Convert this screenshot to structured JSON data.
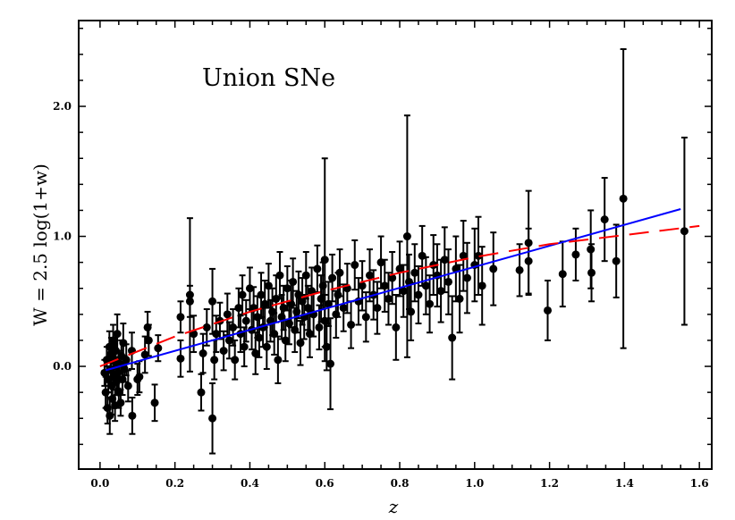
{
  "chart_data": {
    "type": "scatter",
    "title": "Union SNe",
    "xlabel": "z",
    "ylabel": "W = 2.5 log(1+w)",
    "xlim": [
      -0.057,
      1.633
    ],
    "ylim": [
      -0.79,
      2.66
    ],
    "grid": false,
    "x_ticks": [
      "0.0",
      "0.2",
      "0.4",
      "0.6",
      "0.8",
      "1.0",
      "1.2",
      "1.4",
      "1.6"
    ],
    "y_ticks": [
      "0.0",
      "1.0",
      "2.0"
    ],
    "colors": {
      "points": "#000000",
      "linear_fit": "#0000ff",
      "model_curve": "#ff0000"
    },
    "series": [
      {
        "kind": "points_with_errorbars",
        "points": [
          [
            0.012,
            -0.05,
            0.1
          ],
          [
            0.015,
            -0.2,
            0.12
          ],
          [
            0.018,
            0.05,
            0.1
          ],
          [
            0.02,
            -0.32,
            0.12
          ],
          [
            0.022,
            -0.1,
            0.1
          ],
          [
            0.025,
            0.15,
            0.12
          ],
          [
            0.026,
            -0.38,
            0.14
          ],
          [
            0.028,
            -0.02,
            0.1
          ],
          [
            0.03,
            0.1,
            0.12
          ],
          [
            0.031,
            -0.15,
            0.1
          ],
          [
            0.033,
            -0.25,
            0.12
          ],
          [
            0.035,
            0.2,
            0.12
          ],
          [
            0.036,
            -0.08,
            0.1
          ],
          [
            0.038,
            0.05,
            0.12
          ],
          [
            0.04,
            -0.3,
            0.12
          ],
          [
            0.042,
            0.12,
            0.14
          ],
          [
            0.044,
            -0.12,
            0.1
          ],
          [
            0.046,
            0.25,
            0.15
          ],
          [
            0.048,
            -0.05,
            0.12
          ],
          [
            0.05,
            -0.2,
            0.12
          ],
          [
            0.052,
            0.02,
            0.1
          ],
          [
            0.055,
            -0.28,
            0.1
          ],
          [
            0.057,
            0.08,
            0.12
          ],
          [
            0.06,
            -0.1,
            0.12
          ],
          [
            0.062,
            0.18,
            0.15
          ],
          [
            0.065,
            -0.02,
            0.1
          ],
          [
            0.07,
            0.05,
            0.12
          ],
          [
            0.075,
            -0.15,
            0.12
          ],
          [
            0.085,
            0.12,
            0.14
          ],
          [
            0.086,
            -0.38,
            0.14
          ],
          [
            0.1,
            -0.1,
            0.12
          ],
          [
            0.105,
            -0.08,
            0.12
          ],
          [
            0.12,
            0.09,
            0.14
          ],
          [
            0.127,
            0.3,
            0.12
          ],
          [
            0.13,
            0.2,
            0.12
          ],
          [
            0.146,
            -0.28,
            0.14
          ],
          [
            0.155,
            0.14,
            0.1
          ],
          [
            0.215,
            0.38,
            0.12
          ],
          [
            0.215,
            0.06,
            0.14
          ],
          [
            0.24,
            0.55,
            0.59
          ],
          [
            0.24,
            0.5,
            0.12
          ],
          [
            0.25,
            0.25,
            0.14
          ],
          [
            0.27,
            -0.2,
            0.14
          ],
          [
            0.275,
            0.1,
            0.15
          ],
          [
            0.285,
            0.3,
            0.14
          ],
          [
            0.3,
            -0.4,
            0.27
          ],
          [
            0.3,
            0.5,
            0.25
          ],
          [
            0.305,
            0.05,
            0.15
          ],
          [
            0.31,
            0.25,
            0.14
          ],
          [
            0.32,
            0.35,
            0.14
          ],
          [
            0.33,
            0.12,
            0.15
          ],
          [
            0.34,
            0.4,
            0.16
          ],
          [
            0.345,
            0.2,
            0.14
          ],
          [
            0.355,
            0.3,
            0.14
          ],
          [
            0.36,
            0.05,
            0.15
          ],
          [
            0.37,
            0.45,
            0.15
          ],
          [
            0.375,
            0.25,
            0.14
          ],
          [
            0.38,
            0.55,
            0.15
          ],
          [
            0.385,
            0.15,
            0.15
          ],
          [
            0.39,
            0.35,
            0.16
          ],
          [
            0.4,
            0.6,
            0.16
          ],
          [
            0.405,
            0.28,
            0.15
          ],
          [
            0.41,
            0.45,
            0.16
          ],
          [
            0.415,
            0.1,
            0.16
          ],
          [
            0.42,
            0.38,
            0.16
          ],
          [
            0.425,
            0.22,
            0.15
          ],
          [
            0.43,
            0.55,
            0.17
          ],
          [
            0.435,
            0.3,
            0.15
          ],
          [
            0.44,
            0.48,
            0.18
          ],
          [
            0.445,
            0.15,
            0.17
          ],
          [
            0.45,
            0.62,
            0.17
          ],
          [
            0.455,
            0.35,
            0.16
          ],
          [
            0.46,
            0.42,
            0.18
          ],
          [
            0.465,
            0.25,
            0.16
          ],
          [
            0.47,
            0.52,
            0.18
          ],
          [
            0.475,
            0.05,
            0.18
          ],
          [
            0.48,
            0.7,
            0.18
          ],
          [
            0.485,
            0.38,
            0.17
          ],
          [
            0.49,
            0.45,
            0.17
          ],
          [
            0.495,
            0.2,
            0.16
          ],
          [
            0.5,
            0.6,
            0.17
          ],
          [
            0.505,
            0.33,
            0.16
          ],
          [
            0.51,
            0.48,
            0.18
          ],
          [
            0.515,
            0.65,
            0.18
          ],
          [
            0.52,
            0.28,
            0.17
          ],
          [
            0.525,
            0.42,
            0.16
          ],
          [
            0.53,
            0.55,
            0.18
          ],
          [
            0.535,
            0.18,
            0.17
          ],
          [
            0.54,
            0.5,
            0.18
          ],
          [
            0.545,
            0.38,
            0.17
          ],
          [
            0.55,
            0.7,
            0.18
          ],
          [
            0.555,
            0.45,
            0.17
          ],
          [
            0.56,
            0.25,
            0.18
          ],
          [
            0.565,
            0.58,
            0.18
          ],
          [
            0.57,
            0.4,
            0.17
          ],
          [
            0.58,
            0.75,
            0.18
          ],
          [
            0.585,
            0.3,
            0.17
          ],
          [
            0.59,
            0.52,
            0.18
          ],
          [
            0.595,
            0.62,
            0.18
          ],
          [
            0.6,
            0.82,
            0.78
          ],
          [
            0.6,
            0.35,
            0.2
          ],
          [
            0.605,
            0.15,
            0.18
          ],
          [
            0.61,
            0.48,
            0.17
          ],
          [
            0.615,
            0.02,
            0.35
          ],
          [
            0.62,
            0.68,
            0.18
          ],
          [
            0.63,
            0.4,
            0.18
          ],
          [
            0.635,
            0.55,
            0.17
          ],
          [
            0.64,
            0.72,
            0.18
          ],
          [
            0.65,
            0.45,
            0.18
          ],
          [
            0.66,
            0.6,
            0.19
          ],
          [
            0.67,
            0.32,
            0.18
          ],
          [
            0.68,
            0.78,
            0.19
          ],
          [
            0.69,
            0.5,
            0.18
          ],
          [
            0.7,
            0.62,
            0.19
          ],
          [
            0.71,
            0.38,
            0.19
          ],
          [
            0.72,
            0.7,
            0.2
          ],
          [
            0.73,
            0.55,
            0.19
          ],
          [
            0.74,
            0.45,
            0.2
          ],
          [
            0.75,
            0.8,
            0.2
          ],
          [
            0.76,
            0.62,
            0.2
          ],
          [
            0.77,
            0.52,
            0.2
          ],
          [
            0.78,
            0.68,
            0.2
          ],
          [
            0.79,
            0.3,
            0.25
          ],
          [
            0.8,
            0.75,
            0.21
          ],
          [
            0.81,
            0.58,
            0.2
          ],
          [
            0.82,
            1.0,
            0.93
          ],
          [
            0.825,
            0.65,
            0.21
          ],
          [
            0.83,
            0.42,
            0.22
          ],
          [
            0.84,
            0.72,
            0.22
          ],
          [
            0.85,
            0.55,
            0.22
          ],
          [
            0.86,
            0.85,
            0.23
          ],
          [
            0.87,
            0.62,
            0.22
          ],
          [
            0.88,
            0.48,
            0.22
          ],
          [
            0.89,
            0.78,
            0.23
          ],
          [
            0.9,
            0.7,
            0.24
          ],
          [
            0.91,
            0.58,
            0.24
          ],
          [
            0.92,
            0.82,
            0.25
          ],
          [
            0.93,
            0.65,
            0.25
          ],
          [
            0.94,
            0.22,
            0.32
          ],
          [
            0.95,
            0.75,
            0.25
          ],
          [
            0.96,
            0.52,
            0.26
          ],
          [
            0.97,
            0.85,
            0.27
          ],
          [
            0.98,
            0.68,
            0.27
          ],
          [
            1.0,
            0.78,
            0.28
          ],
          [
            1.01,
            0.85,
            0.3
          ],
          [
            1.02,
            0.62,
            0.3
          ],
          [
            1.05,
            0.75,
            0.28
          ],
          [
            1.12,
            0.74,
            0.2
          ],
          [
            1.144,
            0.95,
            0.4
          ],
          [
            1.144,
            0.81,
            0.25
          ],
          [
            1.195,
            0.43,
            0.23
          ],
          [
            1.235,
            0.71,
            0.25
          ],
          [
            1.27,
            0.86,
            0.2
          ],
          [
            1.31,
            0.9,
            0.3
          ],
          [
            1.312,
            0.72,
            0.22
          ],
          [
            1.347,
            1.13,
            0.32
          ],
          [
            1.378,
            0.81,
            0.28
          ],
          [
            1.397,
            1.29,
            1.15
          ],
          [
            1.56,
            1.04,
            0.72
          ]
        ]
      },
      {
        "kind": "line",
        "style": "solid",
        "color": "#0000ff",
        "points": [
          [
            0.015,
            -0.03
          ],
          [
            1.55,
            1.21
          ]
        ]
      },
      {
        "kind": "line",
        "style": "dashed",
        "color": "#ff0000",
        "points": [
          [
            0.0,
            0.0
          ],
          [
            0.2,
            0.23
          ],
          [
            0.4,
            0.42
          ],
          [
            0.6,
            0.58
          ],
          [
            0.8,
            0.72
          ],
          [
            1.0,
            0.84
          ],
          [
            1.2,
            0.94
          ],
          [
            1.4,
            1.01
          ],
          [
            1.6,
            1.08
          ]
        ]
      }
    ]
  }
}
